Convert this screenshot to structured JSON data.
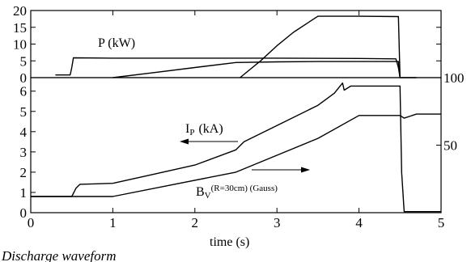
{
  "caption": "Discharge waveform",
  "chart_data": [
    {
      "type": "line",
      "panel": "top",
      "xlim": [
        0,
        5
      ],
      "ylim": [
        0,
        20
      ],
      "yticks": [
        "0",
        "5",
        "10",
        "15",
        "20"
      ],
      "label": "P (kW)",
      "series": [
        {
          "x": [
            0.3,
            0.48,
            0.5,
            0.52,
            1.0,
            2.0,
            3.0,
            4.0,
            4.45,
            4.48,
            4.5,
            4.7
          ],
          "y": [
            0.8,
            0.8,
            3.0,
            5.9,
            5.8,
            5.8,
            5.8,
            5.7,
            5.6,
            3.0,
            0.0,
            0.0
          ]
        },
        {
          "x": [
            1.0,
            1.5,
            2.0,
            2.5,
            3.0,
            3.5,
            4.0,
            4.48,
            4.5
          ],
          "y": [
            0.0,
            1.5,
            3.0,
            4.5,
            4.7,
            4.8,
            4.8,
            4.8,
            0.0
          ]
        },
        {
          "x": [
            2.55,
            2.8,
            3.0,
            3.2,
            3.48,
            3.5,
            4.0,
            4.48,
            4.5
          ],
          "y": [
            0.0,
            5.0,
            9.5,
            13.5,
            18.0,
            18.3,
            18.3,
            18.2,
            0.0
          ]
        }
      ]
    },
    {
      "type": "line",
      "panel": "bottom",
      "xlim": [
        0,
        5
      ],
      "ylim": [
        0,
        6.667
      ],
      "xlabel": "time (s)",
      "xticks": [
        "0",
        "1",
        "2",
        "3",
        "4",
        "5"
      ],
      "yticks": [
        "0",
        "1",
        "2",
        "3",
        "4",
        "5",
        "6"
      ],
      "ylim_right": [
        0,
        100
      ],
      "yticks_right": [
        "50",
        "100"
      ],
      "annotations": [
        "I",
        "P",
        "(kA)",
        "B",
        "V",
        "(R=30cm) (Gauss)"
      ],
      "series": [
        {
          "x": [
            0.0,
            0.5,
            0.55,
            0.6,
            1.0,
            1.5,
            2.0,
            2.5,
            2.6,
            3.0,
            3.5,
            3.7,
            3.8,
            3.82,
            3.9,
            4.5,
            4.52,
            4.55,
            5.0
          ],
          "y": [
            0.8,
            0.8,
            1.2,
            1.4,
            1.45,
            1.9,
            2.35,
            3.1,
            3.5,
            4.3,
            5.3,
            5.9,
            6.4,
            6.05,
            6.25,
            6.25,
            2.0,
            0.05,
            0.05
          ]
        },
        {
          "x": [
            0.0,
            1.0,
            2.5,
            3.5,
            4.0,
            4.5,
            4.55,
            4.7,
            5.0
          ],
          "y": [
            12.0,
            12.0,
            30.0,
            55.0,
            72.0,
            72.0,
            70.0,
            73.0,
            73.0
          ]
        }
      ]
    }
  ]
}
